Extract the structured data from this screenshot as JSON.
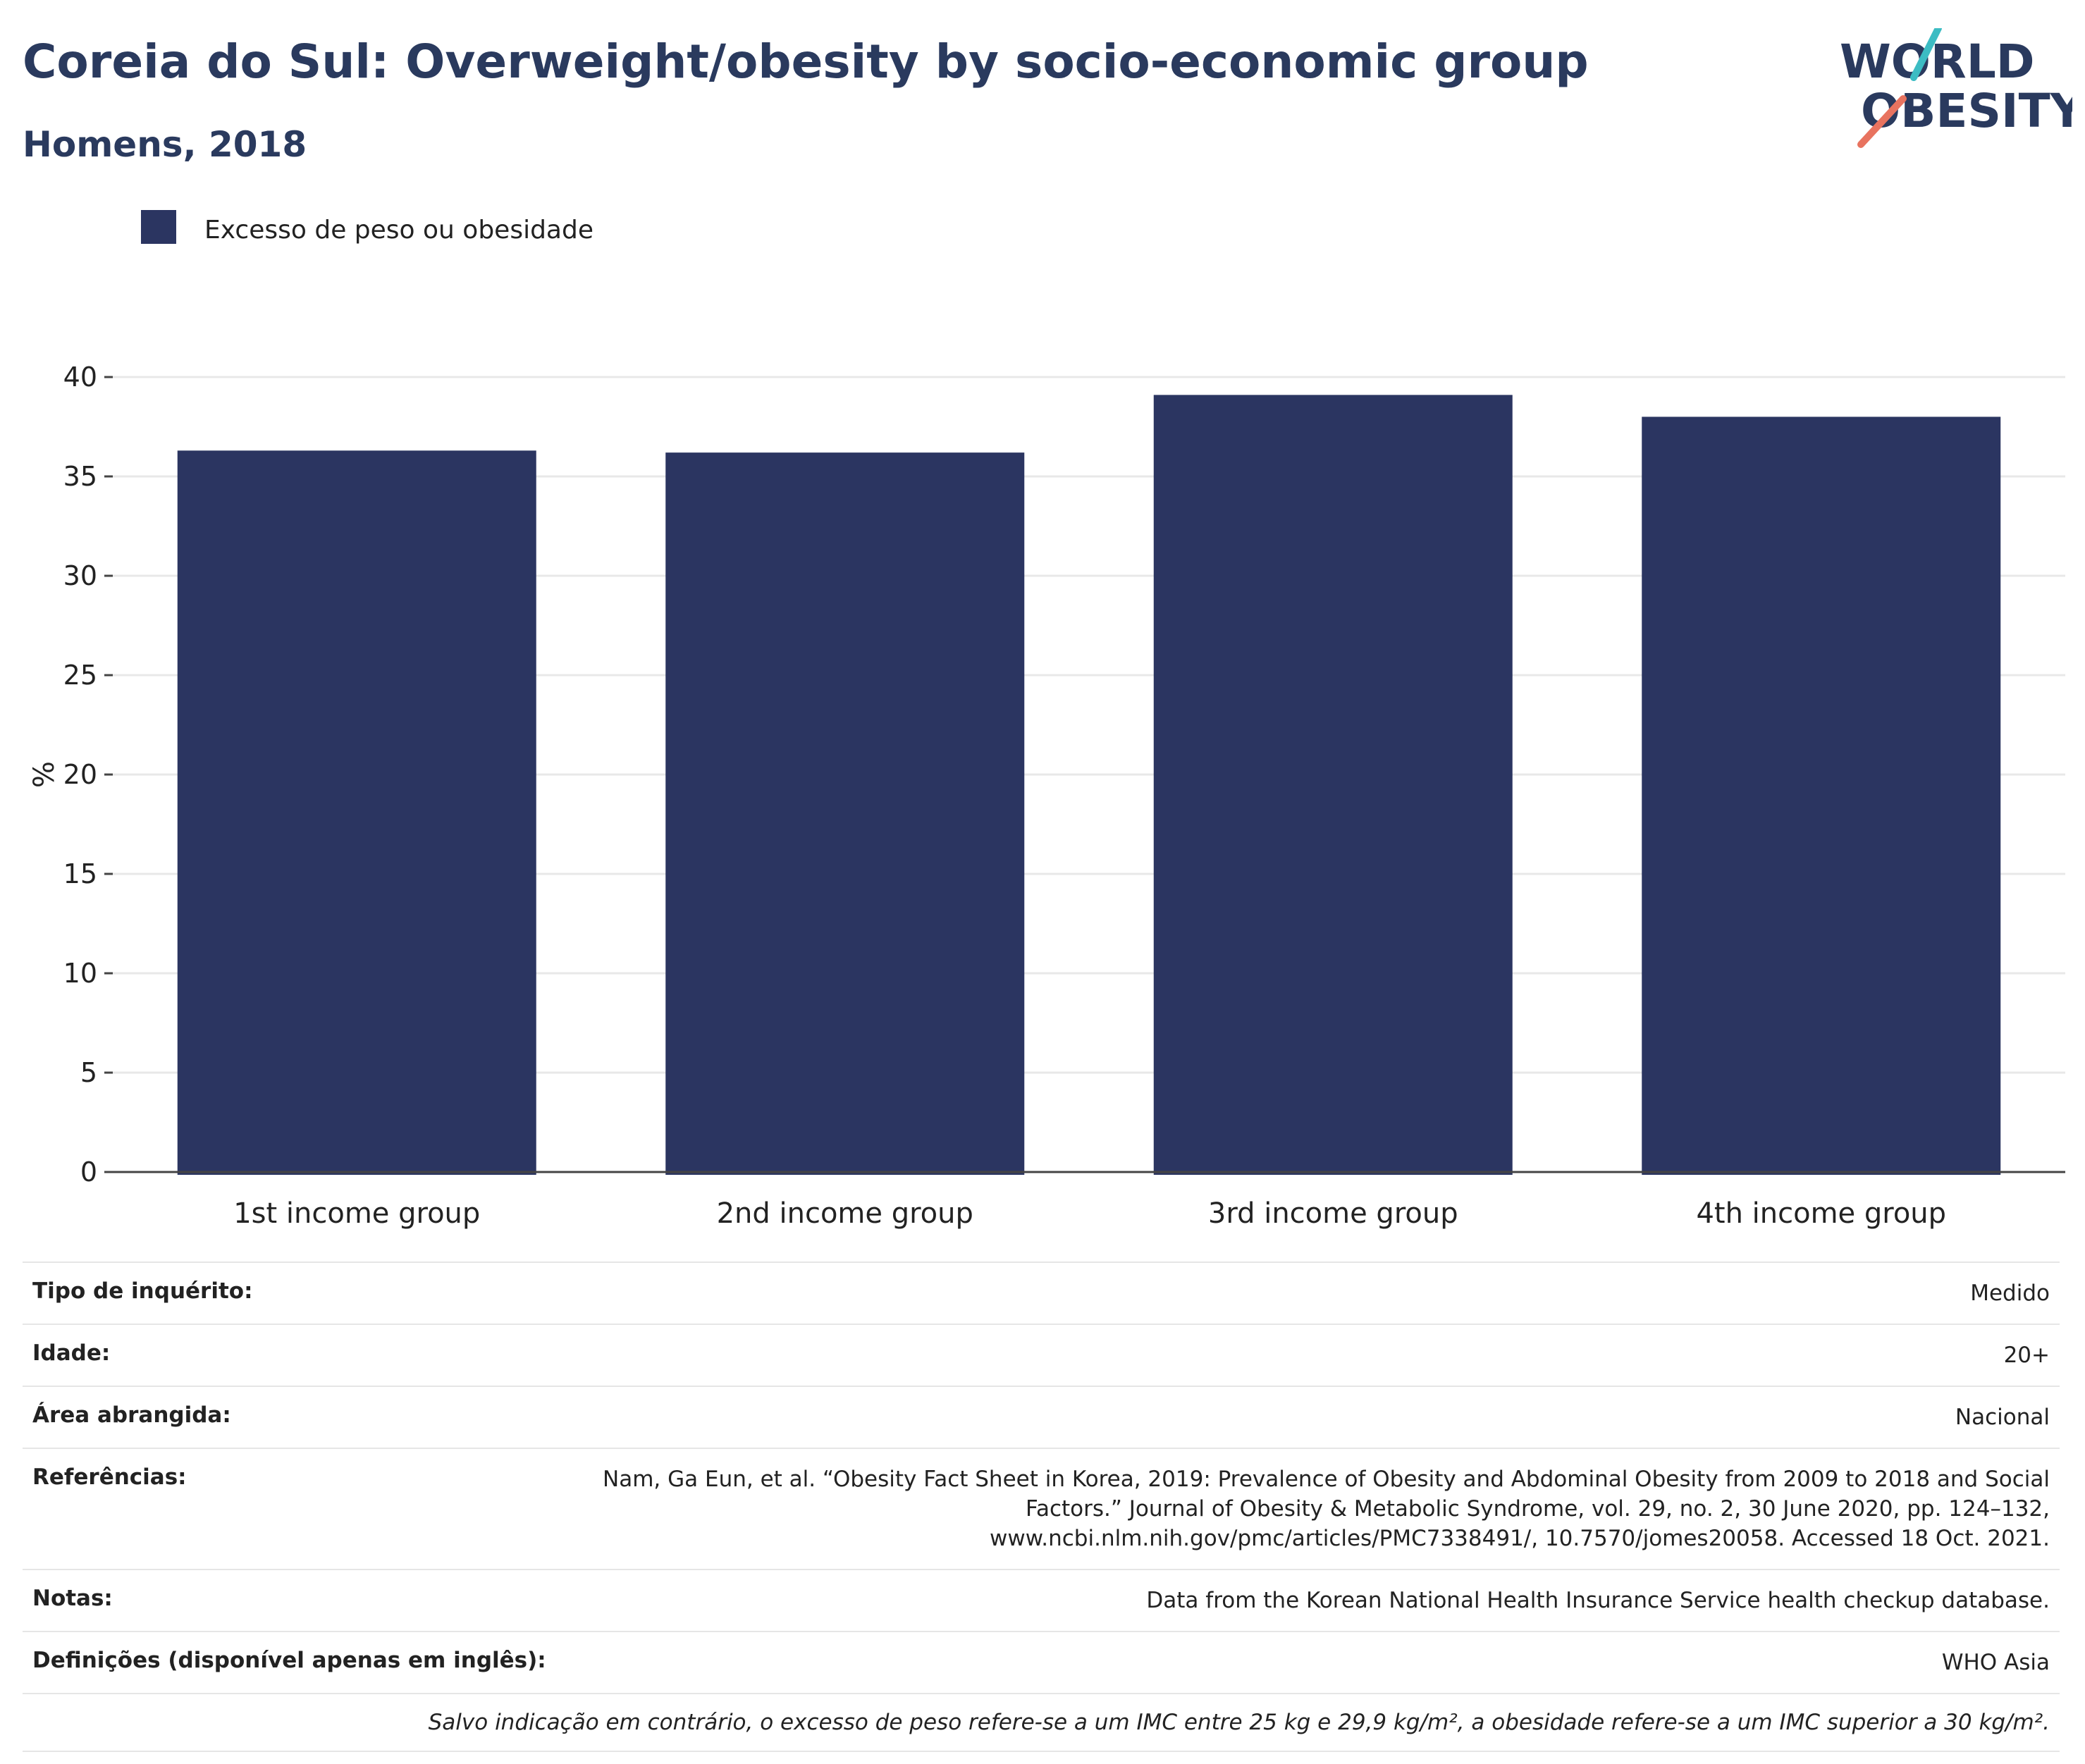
{
  "header": {
    "title": "Coreia do Sul: Overweight/obesity by socio-economic group",
    "subtitle": "Homens, 2018"
  },
  "logo": {
    "line1": "WORLD",
    "line2": "OBESITY"
  },
  "chart_data": {
    "type": "bar",
    "categories": [
      "1st income group",
      "2nd income group",
      "3rd income group",
      "4th income group"
    ],
    "series": [
      {
        "name": "Excesso de peso ou obesidade",
        "values": [
          36.3,
          36.2,
          39.1,
          38.0
        ],
        "color": "#2b3561"
      }
    ],
    "ylabel": "%",
    "ylim": [
      0,
      40
    ],
    "yticks": [
      0,
      5,
      10,
      15,
      20,
      25,
      30,
      35,
      40
    ],
    "grid": true,
    "legend_position": "top-left"
  },
  "metadata": {
    "rows": [
      {
        "label": "Tipo de inquérito:",
        "value": "Medido"
      },
      {
        "label": "Idade:",
        "value": "20+"
      },
      {
        "label": "Área abrangida:",
        "value": "Nacional"
      },
      {
        "label": "Referências:",
        "value": "Nam, Ga Eun, et al. “Obesity Fact Sheet in Korea, 2019: Prevalence of Obesity and Abdominal Obesity from 2009 to 2018 and Social Factors.” Journal of Obesity & Metabolic Syndrome, vol. 29, no. 2, 30 June 2020, pp. 124–132, www.ncbi.nlm.nih.gov/pmc/articles/PMC7338491/, 10.7570/jomes20058. Accessed 18 Oct. 2021."
      },
      {
        "label": "Notas:",
        "value": "Data from the Korean National Health Insurance Service health checkup database."
      },
      {
        "label": "Definições (disponível apenas em inglês):",
        "value": "WHO Asia"
      }
    ],
    "footnote": "Salvo indicação em contrário, o excesso de peso refere-se a um IMC entre 25 kg e 29,9 kg/m², a obesidade refere-se a um IMC superior a 30 kg/m²."
  },
  "colors": {
    "title": "#2a3a5e",
    "bar": "#2b3561",
    "logo_teal": "#3cbcc3",
    "logo_coral": "#e8735f"
  }
}
